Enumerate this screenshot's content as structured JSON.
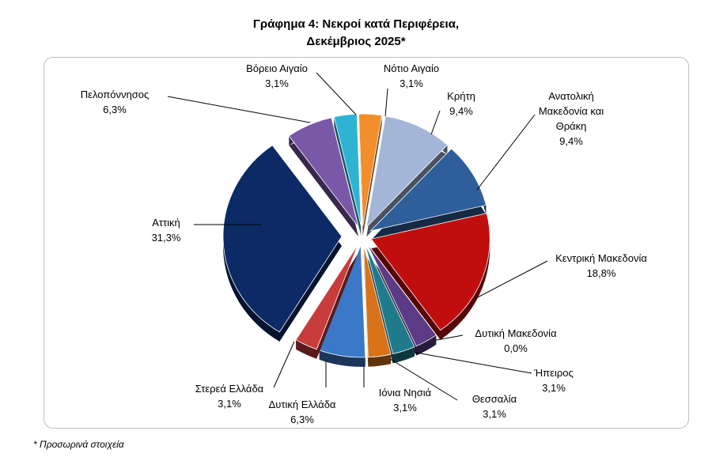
{
  "chart_data": {
    "type": "pie",
    "title_line1": "Γράφημα 4: Νεκροί κατά Περιφέρεια,",
    "title_line2": "Δεκέμβριος 2025*",
    "unit": "%",
    "slices": [
      {
        "name": "Νότιο Αιγαίο",
        "value": 3.1,
        "label": "3,1%",
        "color": "#f28e2b"
      },
      {
        "name": "Κρήτη",
        "value": 9.4,
        "label": "9,4%",
        "color": "#a3b6d8"
      },
      {
        "name": "Ανατολική Μακεδονία και Θράκη",
        "name_lines": [
          "Ανατολική",
          "Μακεδονία και",
          "Θράκη"
        ],
        "value": 9.4,
        "label": "9,4%",
        "color": "#2f5f9a"
      },
      {
        "name": "Κεντρική Μακεδονία",
        "value": 18.8,
        "label": "18,8%",
        "color": "#c00e0e"
      },
      {
        "name": "Δυτική Μακεδονία",
        "value": 0.0,
        "label": "0,0%",
        "color": "#6b8e23"
      },
      {
        "name": "Ήπειρος",
        "value": 3.1,
        "label": "3,1%",
        "color": "#5b3a86"
      },
      {
        "name": "Θεσσαλία",
        "value": 3.1,
        "label": "3,1%",
        "color": "#1f7a8c"
      },
      {
        "name": "Ιόνια Νησιά",
        "value": 3.1,
        "label": "3,1%",
        "color": "#d9731a"
      },
      {
        "name": "Δυτική Ελλάδα",
        "value": 6.3,
        "label": "6,3%",
        "color": "#3c78c8"
      },
      {
        "name": "Στερεά Ελλάδα",
        "value": 3.1,
        "label": "3,1%",
        "color": "#c83c3c"
      },
      {
        "name": "Αττική",
        "value": 31.3,
        "label": "31,3%",
        "color": "#0b2a66"
      },
      {
        "name": "Πελοπόννησος",
        "value": 6.3,
        "label": "6,3%",
        "color": "#7a58a8"
      },
      {
        "name": "Βόρειο Αιγαίο",
        "value": 3.1,
        "label": "3,1%",
        "color": "#2fb3d3"
      }
    ]
  },
  "footnote": "* Προσωρινά στοιχεία"
}
